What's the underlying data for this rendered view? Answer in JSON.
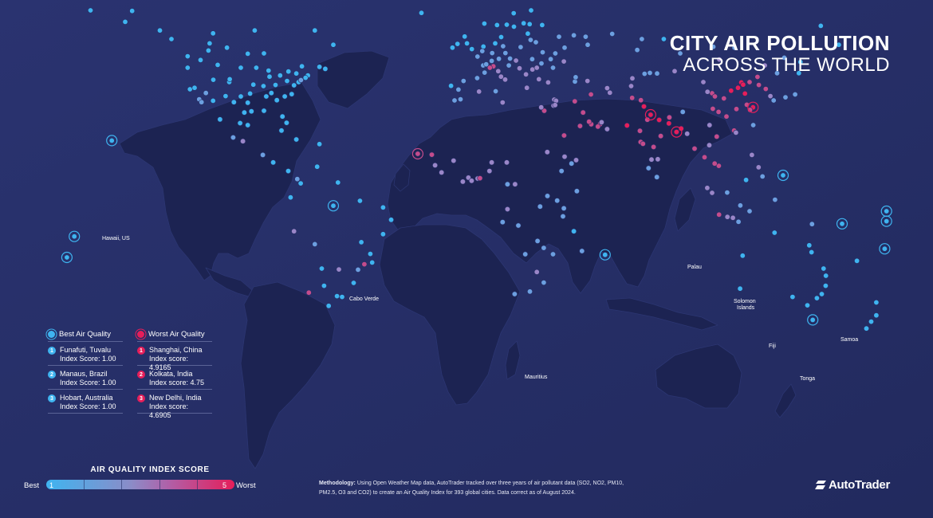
{
  "title": {
    "line1": "CITY AIR POLLUTION",
    "line2": "ACROSS THE WORLD"
  },
  "colors": {
    "background": "#262f66",
    "land": "#1c2352",
    "best": "#3fb4f0",
    "mid": "#8b8cc8",
    "worst": "#e61e5a"
  },
  "callouts": {
    "hawaii": "Hawaii, US",
    "cabo_verde": "Cabo Verde",
    "mauritius": "Mauritius",
    "palau": "Palau",
    "solomon_1": "Solomon",
    "solomon_2": "Islands",
    "fiji": "Fiji",
    "samoa": "Samoa",
    "tonga": "Tonga"
  },
  "legend": {
    "best_heading": "Best Air Quality",
    "worst_heading": "Worst Air Quality",
    "best": [
      {
        "rank": "1",
        "city": "Funafuti, Tuvalu",
        "score": "Index Score: 1.00"
      },
      {
        "rank": "2",
        "city": "Manaus, Brazil",
        "score": "Index Score: 1.00"
      },
      {
        "rank": "3",
        "city": "Hobart, Australia",
        "score": "Index Score: 1.00"
      }
    ],
    "worst": [
      {
        "rank": "1",
        "city": "Shanghai, China",
        "score": "Index score: 4.9165"
      },
      {
        "rank": "2",
        "city": "Kolkata, India",
        "score": "Index score: 4.75"
      },
      {
        "rank": "3",
        "city": "New Delhi, India",
        "score": "Index score: 4.6905"
      }
    ]
  },
  "scale": {
    "title": "AIR QUALITY INDEX SCORE",
    "min_label": "Best",
    "max_label": "Worst",
    "min": "1",
    "max": "5"
  },
  "methodology": {
    "label": "Methodology:",
    "text": "Using Open Weather Map data, AutoTrader tracked over three years of air pollutant data (SO2, NO2, PM10, PM2.5, O3 and CO2) to create an Air Quality Index  for 393 global cities. Data correct as of August 2024."
  },
  "brand": "AutoTrader",
  "map_points": [
    [
      -155.8,
      19.6,
      1
    ],
    [
      -23.5,
      15.0,
      4
    ],
    [
      57.5,
      -20.2,
      1
    ],
    [
      134.5,
      7.5,
      1
    ],
    [
      160.0,
      -9.4,
      1
    ],
    [
      178.4,
      -18.1,
      1
    ],
    [
      -172.0,
      -13.8,
      1
    ],
    [
      -175.2,
      -21.1,
      1
    ],
    [
      179.2,
      -8.5,
      1
    ],
    [
      179.2,
      -5.0,
      1
    ],
    [
      -60.0,
      -3.1,
      1
    ],
    [
      147.3,
      -42.9,
      1
    ],
    [
      121.5,
      31.2,
      5
    ],
    [
      88.4,
      22.6,
      5
    ],
    [
      77.2,
      28.6,
      5
    ],
    [
      -150,
      61,
      1
    ],
    [
      -135,
      58,
      1
    ],
    [
      -123,
      49,
      1
    ],
    [
      -123,
      45,
      1
    ],
    [
      -122,
      37.5,
      1
    ],
    [
      -118,
      34,
      2
    ],
    [
      -117,
      33,
      2
    ],
    [
      -112,
      33.5,
      1
    ],
    [
      -105,
      40,
      1
    ],
    [
      -97,
      32.8,
      1
    ],
    [
      -95.4,
      29.8,
      1
    ],
    [
      -90,
      30,
      1
    ],
    [
      -87.6,
      41.9,
      1
    ],
    [
      -83,
      42.3,
      1
    ],
    [
      -80,
      40.4,
      1
    ],
    [
      -75,
      40,
      1
    ],
    [
      -74,
      40.7,
      2
    ],
    [
      -71,
      42.3,
      1
    ],
    [
      -77,
      38.9,
      1
    ],
    [
      -80.2,
      25.8,
      1
    ],
    [
      -84.4,
      33.7,
      1
    ],
    [
      -86.8,
      36.2,
      1
    ],
    [
      -90.2,
      38.6,
      1
    ],
    [
      -94.6,
      39.1,
      1
    ],
    [
      -93.3,
      45,
      1
    ],
    [
      -104.8,
      41,
      1
    ],
    [
      -111.9,
      40.8,
      1
    ],
    [
      -115.1,
      36.2,
      2
    ],
    [
      -106.6,
      35.1,
      1
    ],
    [
      -98.5,
      29.4,
      1
    ],
    [
      -79.4,
      43.7,
      1
    ],
    [
      -73.6,
      45.5,
      1
    ],
    [
      -114,
      51,
      1
    ],
    [
      -113.5,
      53.5,
      1
    ],
    [
      -97,
      49.9,
      1
    ],
    [
      -66,
      45.3,
      1
    ],
    [
      -63.5,
      44.6,
      1
    ],
    [
      -106,
      52,
      1
    ],
    [
      -100,
      45,
      1
    ],
    [
      -88,
      44,
      1
    ],
    [
      -82,
      28,
      1
    ],
    [
      -81,
      35,
      1
    ],
    [
      -78,
      35.8,
      1
    ],
    [
      -85,
      39,
      1
    ],
    [
      -89,
      35,
      1
    ],
    [
      -100,
      35,
      1
    ],
    [
      -110,
      46,
      1
    ],
    [
      -117.4,
      47.7,
      1
    ],
    [
      -120,
      38,
      1
    ],
    [
      -103,
      33,
      1
    ],
    [
      -96,
      36,
      1
    ],
    [
      -76,
      43,
      1
    ],
    [
      -72,
      41.5,
      1
    ],
    [
      -99.1,
      19.4,
      3
    ],
    [
      -103.3,
      20.7,
      2
    ],
    [
      -100.3,
      25.7,
      1
    ],
    [
      -90.5,
      14.6,
      2
    ],
    [
      -86,
      12,
      1
    ],
    [
      -79.5,
      9,
      1
    ],
    [
      -82.4,
      23.1,
      1
    ],
    [
      -66,
      18.4,
      1
    ],
    [
      -76,
      20,
      1
    ],
    [
      -74.1,
      4.7,
      1
    ],
    [
      -75.6,
      6.2,
      2
    ],
    [
      -67,
      10.5,
      1
    ],
    [
      -78.5,
      -0.2,
      1
    ],
    [
      -77,
      -12,
      3
    ],
    [
      -68,
      -16.5,
      2
    ],
    [
      -70.6,
      -33.4,
      4
    ],
    [
      -58.4,
      -34.6,
      1
    ],
    [
      -56.2,
      -34.9,
      1
    ],
    [
      -57.6,
      -25.3,
      3
    ],
    [
      -47.9,
      -15.8,
      1
    ],
    [
      -46.6,
      -23.5,
      4
    ],
    [
      -43.2,
      -22.9,
      1
    ],
    [
      -38.5,
      -13,
      1
    ],
    [
      -35,
      -8,
      1
    ],
    [
      -38.5,
      -3.7,
      1
    ],
    [
      -48.5,
      -1.4,
      1
    ],
    [
      -51.2,
      -30,
      1
    ],
    [
      -49.3,
      -25.4,
      2
    ],
    [
      -65,
      -25,
      1
    ],
    [
      -64,
      -31,
      1
    ],
    [
      -62,
      -38,
      1
    ],
    [
      -44,
      -19.9,
      1
    ],
    [
      -58,
      5,
      1
    ],
    [
      -0.1,
      51.5,
      1
    ],
    [
      -2.2,
      53.5,
      1
    ],
    [
      -3.2,
      55.9,
      1
    ],
    [
      -6.3,
      53.3,
      1
    ],
    [
      -8.5,
      52,
      1
    ],
    [
      2.35,
      48.9,
      2
    ],
    [
      4.9,
      52.4,
      1
    ],
    [
      4.4,
      50.8,
      2
    ],
    [
      13.4,
      52.5,
      2
    ],
    [
      10,
      53.5,
      1
    ],
    [
      11.6,
      48.1,
      2
    ],
    [
      8.7,
      50.1,
      2
    ],
    [
      16.4,
      48.2,
      2
    ],
    [
      14.4,
      50.1,
      2
    ],
    [
      21,
      52.2,
      2
    ],
    [
      19,
      47.5,
      3
    ],
    [
      26.1,
      44.4,
      3
    ],
    [
      23.3,
      42.7,
      3
    ],
    [
      12.5,
      41.9,
      3
    ],
    [
      9.2,
      45.5,
      4
    ],
    [
      7.7,
      45,
      4
    ],
    [
      11.3,
      43.8,
      3
    ],
    [
      14.3,
      40.9,
      3
    ],
    [
      -3.7,
      40.4,
      2
    ],
    [
      2.2,
      41.4,
      2
    ],
    [
      -9.1,
      38.7,
      1
    ],
    [
      -5.9,
      37.4,
      2
    ],
    [
      5.4,
      43.3,
      2
    ],
    [
      4.8,
      45.8,
      2
    ],
    [
      6.1,
      46.2,
      2
    ],
    [
      8.5,
      47.4,
      2
    ],
    [
      12.6,
      55.7,
      1
    ],
    [
      18.1,
      59.3,
      1
    ],
    [
      10.8,
      59.9,
      1
    ],
    [
      24.9,
      60.2,
      1
    ],
    [
      24.1,
      56.9,
      1
    ],
    [
      25.3,
      54.7,
      2
    ],
    [
      27.6,
      53.9,
      2
    ],
    [
      30.5,
      50.4,
      2
    ],
    [
      37.6,
      55.8,
      2
    ],
    [
      30.3,
      59.9,
      1
    ],
    [
      44,
      56.3,
      2
    ],
    [
      49.1,
      55.8,
      2
    ],
    [
      39.7,
      47.2,
      3
    ],
    [
      28.9,
      41,
      3
    ],
    [
      32.9,
      39.9,
      3
    ],
    [
      23.7,
      38,
      3
    ],
    [
      20.5,
      44.8,
      3
    ],
    [
      15.9,
      45.8,
      2
    ],
    [
      22.3,
      60.5,
      1
    ],
    [
      25.5,
      65,
      1
    ],
    [
      18,
      64,
      1
    ],
    [
      15,
      60,
      1
    ],
    [
      5.3,
      60.4,
      1
    ],
    [
      -21.9,
      64.1,
      1
    ],
    [
      28,
      45,
      3
    ],
    [
      35,
      45,
      2
    ],
    [
      34,
      48,
      2
    ],
    [
      40,
      52,
      2
    ],
    [
      50,
      53,
      2
    ],
    [
      60.6,
      56.8,
      2
    ],
    [
      73.4,
      55,
      2
    ],
    [
      82.9,
      55,
      1
    ],
    [
      36,
      50,
      2
    ],
    [
      30,
      46.5,
      2
    ],
    [
      26,
      48,
      2
    ],
    [
      -7.6,
      33.6,
      2
    ],
    [
      -5,
      34,
      2
    ],
    [
      3,
      36.7,
      3
    ],
    [
      10.2,
      36.8,
      2
    ],
    [
      13.2,
      32.9,
      3
    ],
    [
      31.2,
      30,
      4
    ],
    [
      29.9,
      31.2,
      3
    ],
    [
      -17.4,
      14.7,
      4
    ],
    [
      -16,
      11,
      3
    ],
    [
      -13.2,
      8.5,
      3
    ],
    [
      -8,
      12.6,
      3
    ],
    [
      -4,
      5.3,
      3
    ],
    [
      -1.6,
      6.7,
      3
    ],
    [
      -0.2,
      5.6,
      3
    ],
    [
      2.4,
      6.4,
      3
    ],
    [
      3.4,
      6.5,
      4
    ],
    [
      7.5,
      9,
      3
    ],
    [
      8.5,
      12,
      3
    ],
    [
      15,
      12,
      3
    ],
    [
      15.3,
      4.4,
      2
    ],
    [
      18.6,
      4.4,
      3
    ],
    [
      32.5,
      15.6,
      3
    ],
    [
      38.7,
      9,
      2
    ],
    [
      36.8,
      -1.3,
      2
    ],
    [
      39.3,
      -6.8,
      2
    ],
    [
      32.6,
      0.3,
      2
    ],
    [
      29.4,
      -3.4,
      2
    ],
    [
      15.3,
      -4.3,
      3
    ],
    [
      13.2,
      -8.8,
      2
    ],
    [
      28.3,
      -15.4,
      2
    ],
    [
      31,
      -17.8,
      2
    ],
    [
      28,
      -26.2,
      3
    ],
    [
      18.4,
      -33.9,
      2
    ],
    [
      31,
      -29.9,
      2
    ],
    [
      25,
      -33,
      2
    ],
    [
      35,
      -20,
      2
    ],
    [
      47.5,
      -18.9,
      2
    ],
    [
      45.3,
      2,
      2
    ],
    [
      43,
      11.6,
      2
    ],
    [
      40,
      14,
      3
    ],
    [
      20,
      -10,
      2
    ],
    [
      23,
      -20,
      2
    ],
    [
      44,
      -12,
      1
    ],
    [
      39.7,
      -4,
      2
    ],
    [
      46.7,
      24.7,
      4
    ],
    [
      39.8,
      21.4,
      4
    ],
    [
      55.3,
      25.3,
      4
    ],
    [
      54.4,
      24.5,
      4
    ],
    [
      51.5,
      25.3,
      4
    ],
    [
      50.6,
      26.2,
      4
    ],
    [
      48,
      29.4,
      4
    ],
    [
      44.4,
      33.3,
      4
    ],
    [
      51.4,
      35.7,
      4
    ],
    [
      59.6,
      36.3,
      3
    ],
    [
      35.5,
      33.9,
      3
    ],
    [
      36.3,
      33.5,
      3
    ],
    [
      35.2,
      31.8,
      3
    ],
    [
      35.9,
      32,
      3
    ],
    [
      44.5,
      40.2,
      2
    ],
    [
      44.8,
      41.7,
      2
    ],
    [
      49.9,
      40.4,
      3
    ],
    [
      58.4,
      37.9,
      3
    ],
    [
      69.3,
      41.3,
      3
    ],
    [
      71.4,
      51.2,
      2
    ],
    [
      76.9,
      43.2,
      2
    ],
    [
      74.6,
      42.9,
      2
    ],
    [
      68.8,
      38.6,
      3
    ],
    [
      69.2,
      34.5,
      4
    ],
    [
      67,
      24.9,
      5
    ],
    [
      74.3,
      31.5,
      5
    ],
    [
      73,
      33.7,
      4
    ],
    [
      72.9,
      19.1,
      4
    ],
    [
      72.6,
      23,
      4
    ],
    [
      75.8,
      26.9,
      4
    ],
    [
      80.9,
      26.8,
      5
    ],
    [
      78.5,
      17.4,
      4
    ],
    [
      77.6,
      13,
      3
    ],
    [
      80.3,
      13.1,
      3
    ],
    [
      76.3,
      10,
      2
    ],
    [
      79.9,
      6.9,
      2
    ],
    [
      85.3,
      27.7,
      4
    ],
    [
      90.4,
      23.8,
      5
    ],
    [
      85.1,
      25.6,
      5
    ],
    [
      81.6,
      21.2,
      4
    ],
    [
      73.9,
      18.5,
      4
    ],
    [
      56,
      26,
      3
    ],
    [
      58.4,
      23.6,
      3
    ],
    [
      45,
      12.8,
      3
    ],
    [
      116.4,
      39.9,
      5
    ],
    [
      117.2,
      39.1,
      5
    ],
    [
      114.3,
      30.6,
      4
    ],
    [
      104.1,
      30.7,
      4
    ],
    [
      106.6,
      29.6,
      4
    ],
    [
      113.3,
      23.1,
      4
    ],
    [
      114.1,
      22.4,
      3
    ],
    [
      108.9,
      34.3,
      4
    ],
    [
      118.8,
      32.1,
      4
    ],
    [
      120.2,
      30.3,
      4
    ],
    [
      126.6,
      45.8,
      3
    ],
    [
      123.4,
      41.8,
      4
    ],
    [
      87.6,
      43.8,
      3
    ],
    [
      103.8,
      36.1,
      4
    ],
    [
      101.8,
      36.6,
      3
    ],
    [
      91.1,
      29.6,
      2
    ],
    [
      102.7,
      25,
      3
    ],
    [
      106.9,
      47.9,
      3
    ],
    [
      127,
      37.6,
      4
    ],
    [
      129,
      35.1,
      3
    ],
    [
      139.7,
      35.7,
      2
    ],
    [
      135.5,
      34.7,
      2
    ],
    [
      130.4,
      33.6,
      2
    ],
    [
      141.3,
      43.1,
      1
    ],
    [
      121.6,
      25,
      2
    ],
    [
      96.2,
      16.8,
      4
    ],
    [
      100.5,
      13.8,
      4
    ],
    [
      105.8,
      21,
      4
    ],
    [
      106.7,
      10.8,
      4
    ],
    [
      104.9,
      11.6,
      4
    ],
    [
      102.6,
      18,
      3
    ],
    [
      101.7,
      3.1,
      3
    ],
    [
      103.8,
      1.4,
      3
    ],
    [
      106.8,
      -6.2,
      4
    ],
    [
      112.8,
      -7.3,
      3
    ],
    [
      115.2,
      -8.7,
      2
    ],
    [
      110.4,
      -7,
      3
    ],
    [
      121,
      14.6,
      3
    ],
    [
      123.9,
      10.3,
      3
    ],
    [
      125.6,
      7.1,
      2
    ],
    [
      118.5,
      5.9,
      1
    ],
    [
      110.3,
      1.5,
      2
    ],
    [
      116,
      -3,
      2
    ],
    [
      120,
      -5,
      2
    ],
    [
      131,
      -1,
      2
    ],
    [
      147,
      -9.5,
      2
    ],
    [
      93,
      22,
      3
    ],
    [
      105,
      35,
      4
    ],
    [
      110,
      28,
      4
    ],
    [
      112,
      37,
      5
    ],
    [
      118,
      36,
      5
    ],
    [
      115,
      38,
      5
    ],
    [
      120,
      40,
      4
    ],
    [
      124,
      39,
      4
    ],
    [
      100,
      40,
      3
    ],
    [
      80,
      43,
      2
    ],
    [
      90,
      50,
      2
    ],
    [
      104.3,
      52.3,
      2
    ],
    [
      113.5,
      52,
      2
    ],
    [
      131.9,
      43.1,
      2
    ],
    [
      135,
      48.5,
      2
    ],
    [
      150.8,
      59.6,
      1
    ],
    [
      158.6,
      53,
      1
    ],
    [
      142,
      47,
      1
    ],
    [
      151.2,
      -33.9,
      1
    ],
    [
      145,
      -37.8,
      1
    ],
    [
      153,
      -27.5,
      1
    ],
    [
      138.6,
      -34.9,
      1
    ],
    [
      115.9,
      -32,
      1
    ],
    [
      149.1,
      -35.3,
      1
    ],
    [
      146.8,
      -19.3,
      1
    ],
    [
      145.8,
      -16.9,
      1
    ],
    [
      130.8,
      -12.5,
      1
    ],
    [
      117,
      -20.5,
      1
    ],
    [
      152,
      -25,
      1
    ],
    [
      152.9,
      -31,
      1
    ],
    [
      174.8,
      -41.3,
      1
    ],
    [
      174.8,
      -36.8,
      1
    ],
    [
      172.6,
      -43.5,
      1
    ],
    [
      170.5,
      -45.9,
      1
    ],
    [
      166.4,
      -22.3,
      1
    ],
    [
      -112,
      57,
      1
    ],
    [
      -94,
      58,
      1
    ],
    [
      -68,
      58,
      1
    ],
    [
      -60,
      53,
      1
    ],
    [
      -90,
      50,
      1
    ],
    [
      -130,
      55,
      1
    ],
    [
      -147,
      64.8,
      1
    ],
    [
      -165,
      65,
      1
    ],
    [
      -97,
      25,
      1
    ],
    [
      -109,
      27,
      1
    ]
  ]
}
